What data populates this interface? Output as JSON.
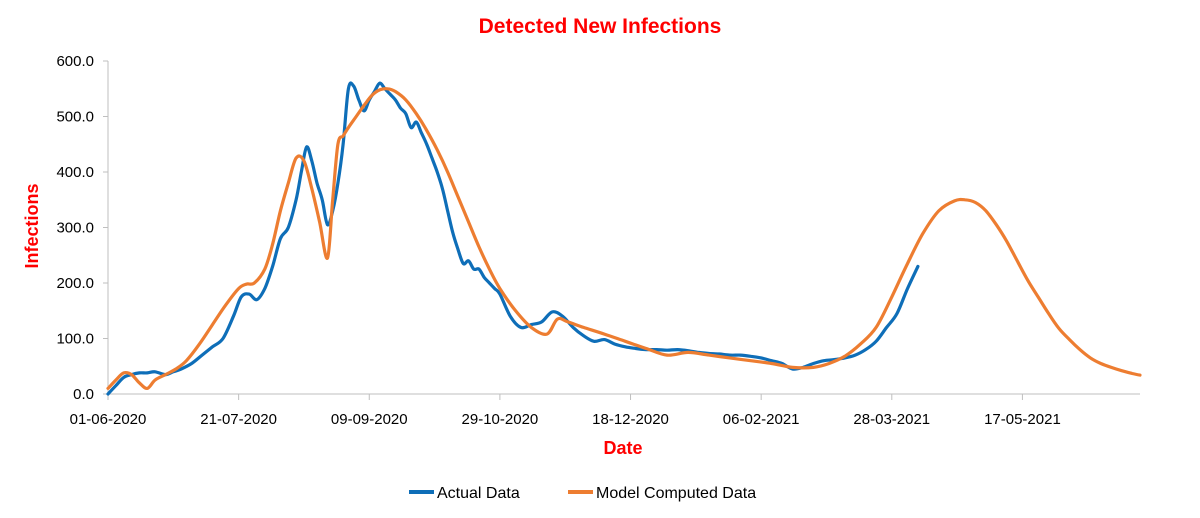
{
  "chart_data": {
    "type": "line",
    "title": "Detected New Infections",
    "xlabel": "Date",
    "ylabel": "Infections",
    "ylim": [
      0,
      600
    ],
    "yticks": [
      "0.0",
      "100.0",
      "200.0",
      "300.0",
      "400.0",
      "500.0",
      "600.0"
    ],
    "xlim": [
      0,
      395
    ],
    "x_tick_labels": [
      "01-06-2020",
      "21-07-2020",
      "09-09-2020",
      "29-10-2020",
      "18-12-2020",
      "06-02-2021",
      "28-03-2021",
      "17-05-2021"
    ],
    "x_tick_days": [
      0,
      50,
      100,
      150,
      200,
      250,
      300,
      350
    ],
    "x_axis_unit": "days since 01-06-2020",
    "title_color": "#ff0000",
    "legend_position": "bottom-center",
    "series": [
      {
        "name": "Actual Data",
        "color": "#0e6eb8",
        "x": [
          0,
          3,
          6,
          9,
          12,
          15,
          18,
          22,
          25,
          28,
          32,
          36,
          40,
          44,
          48,
          51,
          54,
          57,
          60,
          63,
          66,
          69,
          72,
          74,
          76,
          78,
          80,
          82,
          84,
          86,
          88,
          90,
          92,
          94,
          96,
          98,
          100,
          102,
          104,
          106,
          108,
          110,
          112,
          114,
          116,
          118,
          120,
          122,
          124,
          126,
          128,
          130,
          132,
          134,
          136,
          138,
          140,
          142,
          144,
          146,
          148,
          150,
          154,
          158,
          162,
          166,
          170,
          174,
          178,
          182,
          186,
          190,
          194,
          198,
          202,
          206,
          210,
          214,
          218,
          222,
          226,
          230,
          234,
          238,
          242,
          246,
          250,
          254,
          258,
          262,
          266,
          270,
          274,
          278,
          282,
          286,
          290,
          294,
          298,
          302,
          306,
          310
        ],
        "y": [
          0,
          15,
          30,
          35,
          38,
          38,
          40,
          35,
          40,
          45,
          55,
          70,
          85,
          100,
          140,
          175,
          180,
          170,
          190,
          230,
          280,
          300,
          350,
          400,
          445,
          420,
          380,
          350,
          305,
          330,
          380,
          450,
          550,
          555,
          530,
          510,
          530,
          545,
          560,
          550,
          540,
          530,
          515,
          505,
          480,
          490,
          470,
          450,
          425,
          400,
          370,
          330,
          290,
          260,
          235,
          240,
          225,
          225,
          210,
          200,
          190,
          180,
          140,
          120,
          125,
          130,
          148,
          140,
          120,
          105,
          95,
          98,
          90,
          85,
          82,
          80,
          80,
          79,
          80,
          78,
          75,
          73,
          72,
          70,
          70,
          68,
          65,
          60,
          55,
          45,
          48,
          55,
          60,
          62,
          65,
          70,
          80,
          95,
          120,
          145,
          190,
          230
        ]
      },
      {
        "name": "Model Computed Data",
        "color": "#ed7d31",
        "x": [
          0,
          3,
          6,
          9,
          12,
          15,
          18,
          22,
          26,
          30,
          35,
          40,
          45,
          50,
          53,
          56,
          60,
          63,
          66,
          69,
          72,
          75,
          78,
          81,
          84,
          86,
          88,
          90,
          92,
          95,
          98,
          101,
          104,
          107,
          110,
          114,
          118,
          122,
          126,
          130,
          134,
          138,
          142,
          146,
          150,
          156,
          162,
          168,
          172,
          176,
          182,
          190,
          198,
          206,
          214,
          222,
          230,
          238,
          246,
          254,
          262,
          270,
          276,
          282,
          288,
          294,
          300,
          306,
          312,
          318,
          324,
          328,
          332,
          336,
          340,
          344,
          348,
          352,
          356,
          360,
          364,
          368,
          372,
          376,
          380,
          384,
          388,
          392,
          395
        ],
        "y": [
          10,
          25,
          38,
          35,
          20,
          10,
          25,
          35,
          45,
          60,
          90,
          125,
          160,
          190,
          198,
          200,
          225,
          270,
          330,
          380,
          425,
          420,
          370,
          310,
          245,
          350,
          450,
          465,
          480,
          500,
          520,
          538,
          548,
          550,
          545,
          530,
          505,
          475,
          440,
          400,
          355,
          310,
          265,
          225,
          190,
          150,
          120,
          108,
          135,
          130,
          120,
          108,
          95,
          82,
          70,
          75,
          70,
          65,
          60,
          55,
          48,
          48,
          55,
          68,
          90,
          120,
          175,
          235,
          290,
          330,
          348,
          350,
          345,
          330,
          305,
          275,
          240,
          205,
          175,
          145,
          118,
          98,
          80,
          65,
          55,
          48,
          42,
          37,
          34
        ]
      }
    ]
  }
}
